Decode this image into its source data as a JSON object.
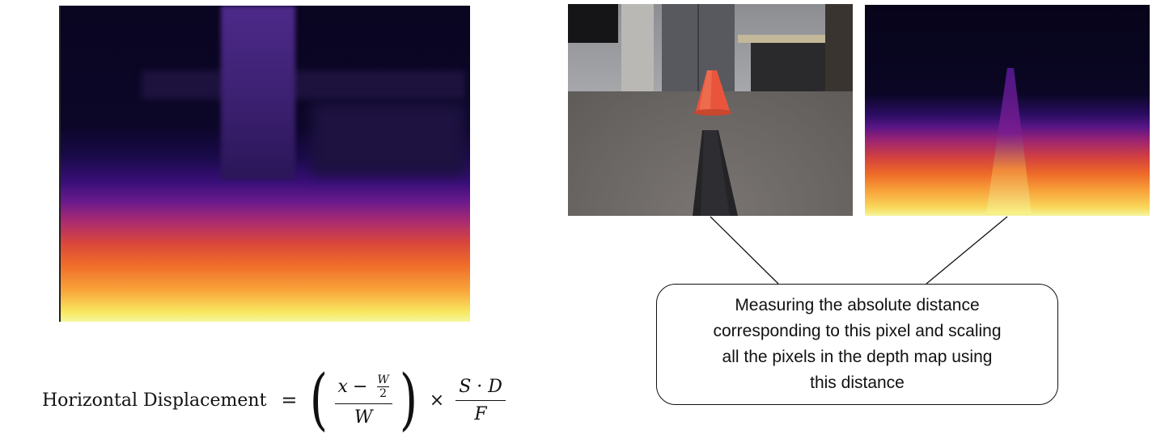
{
  "formula": {
    "lhs": "Horizontal Displacement",
    "equals": "=",
    "x": "x",
    "minus": "−",
    "inner_num": "W",
    "inner_den": "2",
    "denominator": "W",
    "times": "×",
    "rhs_num": "S · D",
    "rhs_den": "F"
  },
  "callout": {
    "text": "Measuring the absolute distance corresponding to this pixel and scaling all the pixels in the depth map using this distance"
  },
  "colors": {
    "depth_low": "#0a0520",
    "depth_mid": "#a82a72",
    "depth_high": "#f4f7a0",
    "cone": "#e8553c",
    "line": "#111111"
  }
}
